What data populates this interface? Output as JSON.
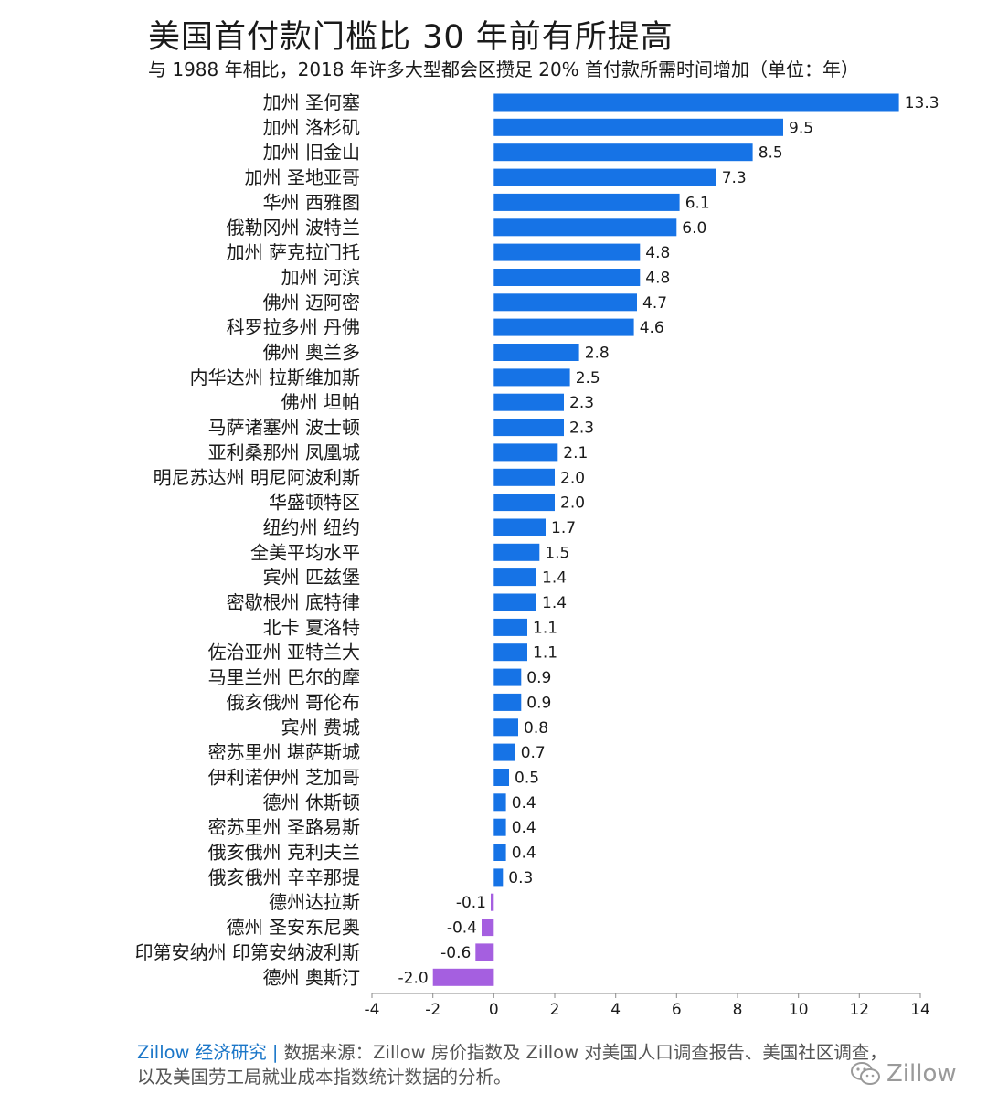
{
  "chart_data": {
    "type": "bar",
    "orientation": "horizontal",
    "title": "美国首付款门槛比 30 年前有所提高",
    "subtitle": "与 1988 年相比，2018 年许多大型都会区攒足 20% 首付款所需时间增加（单位：年）",
    "categories": [
      "加州 圣何塞",
      "加州 洛杉矶",
      "加州 旧金山",
      "加州 圣地亚哥",
      "华州 西雅图",
      "俄勒冈州 波特兰",
      "加州 萨克拉门托",
      "加州 河滨",
      "佛州 迈阿密",
      "科罗拉多州 丹佛",
      "佛州 奥兰多",
      "内华达州 拉斯维加斯",
      "佛州 坦帕",
      "马萨诸塞州 波士顿",
      "亚利桑那州 凤凰城",
      "明尼苏达州 明尼阿波利斯",
      "华盛顿特区",
      "纽约州 纽约",
      "全美平均水平",
      "宾州 匹兹堡",
      "密歇根州 底特律",
      "北卡 夏洛特",
      "佐治亚州 亚特兰大",
      "马里兰州 巴尔的摩",
      "俄亥俄州 哥伦布",
      "宾州 费城",
      "密苏里州 堪萨斯城",
      "伊利诺伊州 芝加哥",
      "德州 休斯顿",
      "密苏里州 圣路易斯",
      "俄亥俄州 克利夫兰",
      "俄亥俄州 辛辛那提",
      "德州达拉斯",
      "德州 圣安东尼奥",
      "印第安纳州 印第安纳波利斯",
      "德州 奥斯汀"
    ],
    "values": [
      13.3,
      9.5,
      8.5,
      7.3,
      6.1,
      6.0,
      4.8,
      4.8,
      4.7,
      4.6,
      2.8,
      2.5,
      2.3,
      2.3,
      2.1,
      2.0,
      2.0,
      1.7,
      1.5,
      1.4,
      1.4,
      1.1,
      1.1,
      0.9,
      0.9,
      0.8,
      0.7,
      0.5,
      0.4,
      0.4,
      0.4,
      0.3,
      -0.1,
      -0.4,
      -0.6,
      -2.0
    ],
    "value_labels": [
      "13.3",
      "9.5",
      "8.5",
      "7.3",
      "6.1",
      "6.0",
      "4.8",
      "4.8",
      "4.7",
      "4.6",
      "2.8",
      "2.5",
      "2.3",
      "2.3",
      "2.1",
      "2.0",
      "2.0",
      "1.7",
      "1.5",
      "1.4",
      "1.4",
      "1.1",
      "1.1",
      "0.9",
      "0.9",
      "0.8",
      "0.7",
      "0.5",
      "0.4",
      "0.4",
      "0.4",
      "0.3",
      "-0.1",
      "-0.4",
      "-0.6",
      "-2.0"
    ],
    "xlim": [
      -4,
      14
    ],
    "xticks": [
      -4,
      -2,
      0,
      2,
      4,
      6,
      8,
      10,
      12,
      14
    ],
    "grid": false,
    "legend": "none",
    "colors": {
      "positive": "#1673e6",
      "negative": "#a55fe0",
      "axis": "#8a8a8a"
    }
  },
  "footer": {
    "brand": "Zillow 经济研究",
    "separator": " | ",
    "line1_rest": "数据来源：Zillow 房价指数及 Zillow 对美国人口调查报告、美国社区调查，",
    "line2": "以及美国劳工局就业成本指数统计数据的分析。"
  },
  "watermark": {
    "text": "Zillow",
    "icon": "wechat-icon"
  }
}
